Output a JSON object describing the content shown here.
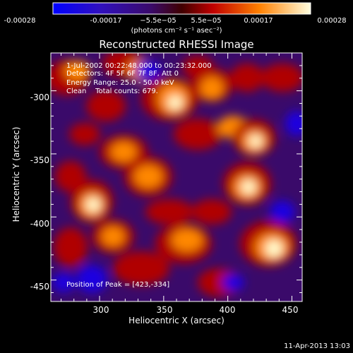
{
  "colorbar": {
    "ticks": [
      "-0.00028",
      "-0.00017",
      "−5.5e−05",
      "5.5e−05",
      "0.00017",
      "0.00028"
    ],
    "units": "(photons cm⁻² s⁻¹ asec⁻²)"
  },
  "title": "Reconstructed RHESSI Image",
  "info": {
    "time": "1-Jul-2002 00:22:48.000 to 00:23:32.000",
    "detectors": "Detectors: 4F 5F 6F 7F 8F, Att 0",
    "energy": "Energy Range: 25.0 - 50.0 keV",
    "algorithm": "Clean    Total counts: 679."
  },
  "peak_label": "Position of Peak = [423,-334]",
  "axes": {
    "xlabel": "Heliocentric X (arcsec)",
    "ylabel": "Heliocentric Y (arcsec)",
    "xticks": [
      "300",
      "350",
      "400",
      "450"
    ],
    "yticks": [
      "-300",
      "-350",
      "-400",
      "-450"
    ]
  },
  "timestamp": "11-Apr-2013 13:03",
  "colors": {
    "low": "#1a00e0",
    "mid_low": "#3a0a7a",
    "mid": "#b00000",
    "mid_high": "#ff8800",
    "high": "#ffffd0"
  },
  "chart_data": {
    "type": "heatmap",
    "title": "Reconstructed RHESSI Image",
    "xlabel": "Heliocentric X (arcsec)",
    "ylabel": "Heliocentric Y (arcsec)",
    "xlim": [
      262,
      458
    ],
    "ylim": [
      -467,
      -270
    ],
    "color_range": [
      -0.00028,
      0.00028
    ],
    "peak_position": [
      423,
      -334
    ]
  }
}
